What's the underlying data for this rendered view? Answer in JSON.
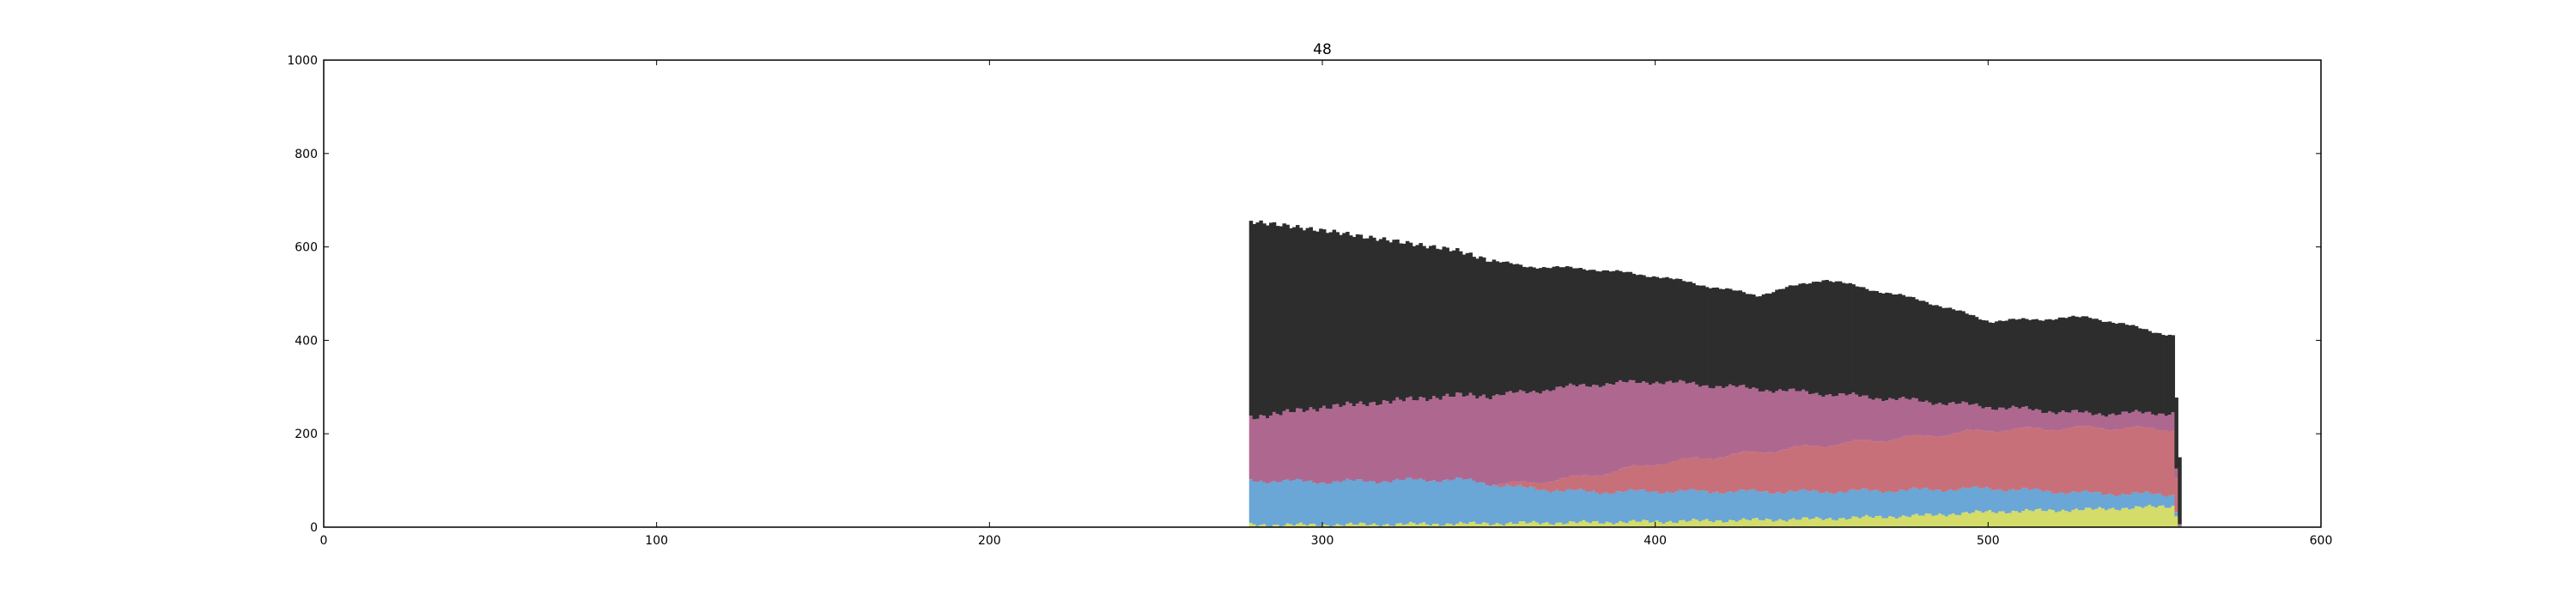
{
  "chart_data": {
    "type": "bar",
    "stacked": true,
    "title": "48",
    "xlabel": "",
    "ylabel": "",
    "xlim": [
      0,
      600
    ],
    "ylim": [
      0,
      1000
    ],
    "xticks": [
      "0",
      "100",
      "200",
      "300",
      "400",
      "500",
      "600"
    ],
    "yticks": [
      "0",
      "200",
      "400",
      "600",
      "800",
      "1000"
    ],
    "grid": false,
    "legend": "none",
    "bar_x_range": [
      278,
      557
    ],
    "bar_width": 1,
    "series": [
      {
        "color": "#d4dc6a",
        "control_points": [
          [
            278,
            5
          ],
          [
            300,
            5
          ],
          [
            350,
            8
          ],
          [
            400,
            12
          ],
          [
            450,
            18
          ],
          [
            480,
            25
          ],
          [
            500,
            33
          ],
          [
            530,
            38
          ],
          [
            555,
            45
          ],
          [
            557,
            3
          ]
        ]
      },
      {
        "color": "#6aa6d6",
        "control_points": [
          [
            278,
            95
          ],
          [
            300,
            92
          ],
          [
            340,
            95
          ],
          [
            360,
            75
          ],
          [
            380,
            65
          ],
          [
            400,
            65
          ],
          [
            450,
            58
          ],
          [
            480,
            55
          ],
          [
            500,
            50
          ],
          [
            530,
            35
          ],
          [
            555,
            25
          ],
          [
            557,
            2
          ]
        ]
      },
      {
        "color": "#c8707a",
        "control_points": [
          [
            278,
            0
          ],
          [
            350,
            0
          ],
          [
            360,
            10
          ],
          [
            400,
            60
          ],
          [
            450,
            100
          ],
          [
            480,
            115
          ],
          [
            500,
            125
          ],
          [
            530,
            140
          ],
          [
            555,
            140
          ],
          [
            557,
            1
          ]
        ]
      },
      {
        "color": "#ae6890",
        "control_points": [
          [
            278,
            135
          ],
          [
            300,
            160
          ],
          [
            340,
            180
          ],
          [
            360,
            195
          ],
          [
            380,
            195
          ],
          [
            400,
            175
          ],
          [
            450,
            110
          ],
          [
            480,
            75
          ],
          [
            500,
            50
          ],
          [
            530,
            30
          ],
          [
            555,
            35
          ],
          [
            557,
            0
          ]
        ]
      },
      {
        "color": "#2d2d2d",
        "control_points": [
          [
            278,
            420
          ],
          [
            300,
            378
          ],
          [
            340,
            310
          ],
          [
            360,
            270
          ],
          [
            400,
            225
          ],
          [
            430,
            200
          ],
          [
            450,
            245
          ],
          [
            480,
            215
          ],
          [
            500,
            183
          ],
          [
            530,
            207
          ],
          [
            555,
            165
          ],
          [
            557,
            140
          ]
        ]
      }
    ]
  }
}
